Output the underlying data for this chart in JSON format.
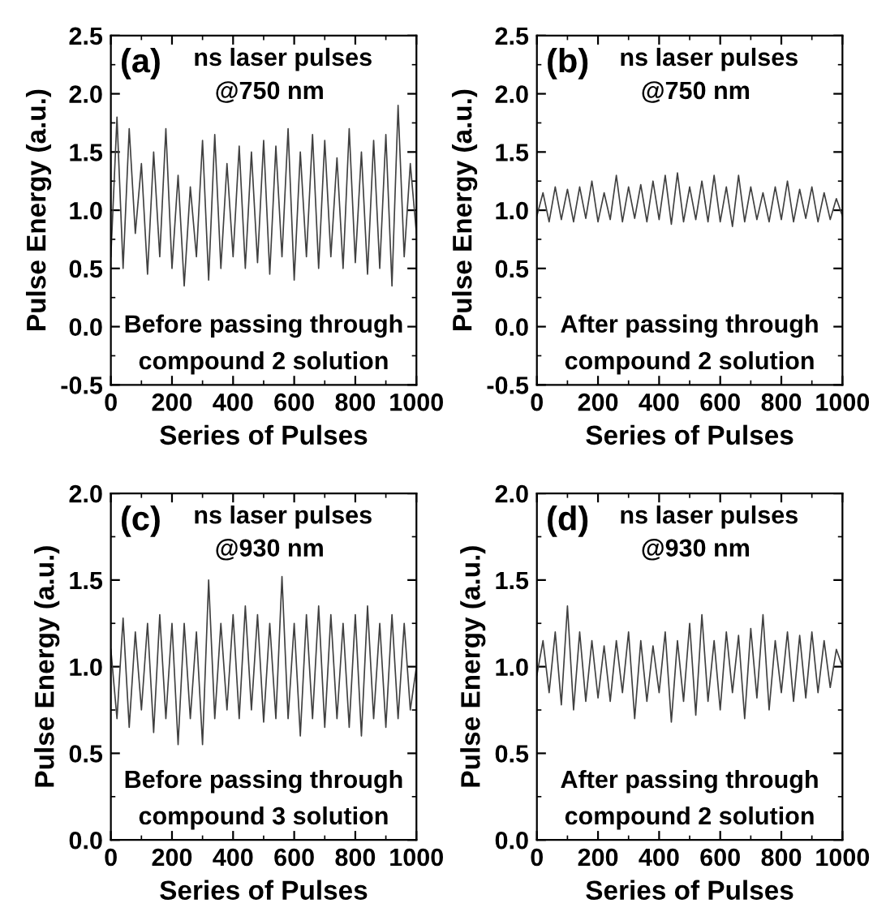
{
  "chart_data": [
    {
      "type": "line",
      "xlabel": "Series of Pulses",
      "ylabel": "Pulse Energy (a.u.)",
      "annotations": [
        "(a)",
        "ns laser pulses",
        "@750 nm",
        "Before passing through",
        "compound 2 solution"
      ],
      "x": [
        0,
        20,
        40,
        60,
        80,
        100,
        120,
        140,
        160,
        180,
        200,
        220,
        240,
        260,
        280,
        300,
        320,
        340,
        360,
        380,
        400,
        420,
        440,
        460,
        480,
        500,
        520,
        540,
        560,
        580,
        600,
        620,
        640,
        660,
        680,
        700,
        720,
        740,
        760,
        780,
        800,
        820,
        840,
        860,
        880,
        900,
        920,
        940,
        960,
        980,
        1000
      ],
      "series": [
        {
          "color": "#404040",
          "values": [
            0.6,
            1.8,
            0.5,
            1.7,
            0.8,
            1.4,
            0.45,
            1.5,
            0.6,
            1.7,
            0.5,
            1.3,
            0.35,
            1.2,
            0.6,
            1.6,
            0.4,
            1.65,
            0.5,
            1.4,
            0.6,
            1.55,
            0.5,
            1.5,
            0.55,
            1.6,
            0.45,
            1.55,
            0.6,
            1.7,
            0.4,
            1.5,
            0.6,
            1.65,
            0.5,
            1.6,
            0.6,
            1.45,
            0.5,
            1.7,
            0.55,
            1.5,
            0.45,
            1.6,
            0.5,
            1.65,
            0.35,
            1.9,
            0.6,
            1.4,
            0.8
          ]
        }
      ],
      "xlim": [
        0,
        1000
      ],
      "xticks": [
        0,
        200,
        400,
        600,
        800,
        1000
      ],
      "ylim": [
        -0.5,
        2.5
      ],
      "yticks": [
        {
          "value": -0.5,
          "label": "-0.5"
        },
        {
          "value": 0,
          "label": "0.0"
        },
        {
          "value": 0.5,
          "label": "0.5"
        },
        {
          "value": 1,
          "label": "1.0"
        },
        {
          "value": 1.5,
          "label": "1.5"
        },
        {
          "value": 2,
          "label": "2.0"
        },
        {
          "value": 2.5,
          "label": "2.5"
        }
      ],
      "grid": false,
      "legend": false
    },
    {
      "type": "line",
      "xlabel": "Series of Pulses",
      "ylabel": "Pulse Energy (a.u.)",
      "annotations": [
        "(b)",
        "ns laser pulses",
        "@750 nm",
        "After passing through",
        "compound 2 solution"
      ],
      "x": [
        0,
        20,
        40,
        60,
        80,
        100,
        120,
        140,
        160,
        180,
        200,
        220,
        240,
        260,
        280,
        300,
        320,
        340,
        360,
        380,
        400,
        420,
        440,
        460,
        480,
        500,
        520,
        540,
        560,
        580,
        600,
        620,
        640,
        660,
        680,
        700,
        720,
        740,
        760,
        780,
        800,
        820,
        840,
        860,
        880,
        900,
        920,
        940,
        960,
        980,
        1000
      ],
      "series": [
        {
          "color": "#404040",
          "values": [
            0.95,
            1.15,
            0.9,
            1.2,
            0.92,
            1.18,
            0.9,
            1.2,
            0.93,
            1.25,
            0.9,
            1.15,
            0.92,
            1.3,
            0.9,
            1.2,
            0.93,
            1.22,
            0.9,
            1.25,
            0.92,
            1.3,
            0.88,
            1.32,
            0.9,
            1.2,
            0.92,
            1.25,
            0.9,
            1.3,
            0.9,
            1.2,
            0.86,
            1.3,
            0.9,
            1.2,
            0.92,
            1.15,
            0.9,
            1.2,
            0.92,
            1.25,
            0.9,
            1.18,
            0.93,
            1.2,
            0.9,
            1.15,
            0.92,
            1.1,
            0.95
          ]
        }
      ],
      "xlim": [
        0,
        1000
      ],
      "xticks": [
        0,
        200,
        400,
        600,
        800,
        1000
      ],
      "ylim": [
        -0.5,
        2.5
      ],
      "yticks": [
        {
          "value": -0.5,
          "label": "-0.5"
        },
        {
          "value": 0,
          "label": "0.0"
        },
        {
          "value": 0.5,
          "label": "0.5"
        },
        {
          "value": 1,
          "label": "1.0"
        },
        {
          "value": 1.5,
          "label": "1.5"
        },
        {
          "value": 2,
          "label": "2.0"
        },
        {
          "value": 2.5,
          "label": "2.5"
        }
      ],
      "grid": false,
      "legend": false
    },
    {
      "type": "line",
      "xlabel": "Series of Pulses",
      "ylabel": "Pulse Energy (a.u.)",
      "annotations": [
        "(c)",
        "ns laser pulses",
        "@930 nm",
        "Before passing through",
        "compound 3 solution"
      ],
      "x": [
        0,
        20,
        40,
        60,
        80,
        100,
        120,
        140,
        160,
        180,
        200,
        220,
        240,
        260,
        280,
        300,
        320,
        340,
        360,
        380,
        400,
        420,
        440,
        460,
        480,
        500,
        520,
        540,
        560,
        580,
        600,
        620,
        640,
        660,
        680,
        700,
        720,
        740,
        760,
        780,
        800,
        820,
        840,
        860,
        880,
        900,
        920,
        940,
        960,
        980,
        1000
      ],
      "series": [
        {
          "color": "#404040",
          "values": [
            1.1,
            0.7,
            1.28,
            0.65,
            1.2,
            0.75,
            1.25,
            0.62,
            1.3,
            0.7,
            1.25,
            0.55,
            1.25,
            0.7,
            1.2,
            0.55,
            1.5,
            0.7,
            1.25,
            0.75,
            1.3,
            0.7,
            1.35,
            0.75,
            1.3,
            0.68,
            1.25,
            0.7,
            1.52,
            0.7,
            1.25,
            0.6,
            1.3,
            0.7,
            1.35,
            0.65,
            1.3,
            0.7,
            1.25,
            0.65,
            1.3,
            0.6,
            1.35,
            0.7,
            1.25,
            0.65,
            1.3,
            0.7,
            1.25,
            0.75,
            1.0
          ]
        }
      ],
      "xlim": [
        0,
        1000
      ],
      "xticks": [
        0,
        200,
        400,
        600,
        800,
        1000
      ],
      "ylim": [
        0,
        2
      ],
      "yticks": [
        {
          "value": 0,
          "label": "0.0"
        },
        {
          "value": 0.5,
          "label": "0.5"
        },
        {
          "value": 1,
          "label": "1.0"
        },
        {
          "value": 1.5,
          "label": "1.5"
        },
        {
          "value": 2,
          "label": "2.0"
        }
      ],
      "grid": false,
      "legend": false
    },
    {
      "type": "line",
      "xlabel": "Series of Pulses",
      "ylabel": "Pulse Energy (a.u.)",
      "annotations": [
        "(d)",
        "ns laser pulses",
        "@930 nm",
        "After passing through",
        "compound 2 solution"
      ],
      "x": [
        0,
        20,
        40,
        60,
        80,
        100,
        120,
        140,
        160,
        180,
        200,
        220,
        240,
        260,
        280,
        300,
        320,
        340,
        360,
        380,
        400,
        420,
        440,
        460,
        480,
        500,
        520,
        540,
        560,
        580,
        600,
        620,
        640,
        660,
        680,
        700,
        720,
        740,
        760,
        780,
        800,
        820,
        840,
        860,
        880,
        900,
        920,
        940,
        960,
        980,
        1000
      ],
      "series": [
        {
          "color": "#404040",
          "values": [
            0.95,
            1.15,
            0.85,
            1.2,
            0.78,
            1.35,
            0.75,
            1.2,
            0.8,
            1.15,
            0.82,
            1.12,
            0.8,
            1.15,
            0.85,
            1.2,
            0.7,
            1.15,
            0.8,
            1.12,
            0.85,
            1.2,
            0.68,
            1.15,
            0.8,
            1.25,
            0.72,
            1.3,
            0.8,
            1.15,
            0.75,
            1.2,
            0.85,
            1.18,
            0.7,
            1.22,
            0.82,
            1.3,
            0.75,
            1.15,
            0.85,
            1.2,
            0.8,
            1.18,
            0.82,
            1.2,
            0.85,
            1.15,
            0.88,
            1.1,
            1.0
          ]
        }
      ],
      "xlim": [
        0,
        1000
      ],
      "xticks": [
        0,
        200,
        400,
        600,
        800,
        1000
      ],
      "ylim": [
        0,
        2
      ],
      "yticks": [
        {
          "value": 0,
          "label": "0.0"
        },
        {
          "value": 0.5,
          "label": "0.5"
        },
        {
          "value": 1,
          "label": "1.0"
        },
        {
          "value": 1.5,
          "label": "1.5"
        },
        {
          "value": 2,
          "label": "2.0"
        }
      ],
      "grid": false,
      "legend": false
    }
  ]
}
